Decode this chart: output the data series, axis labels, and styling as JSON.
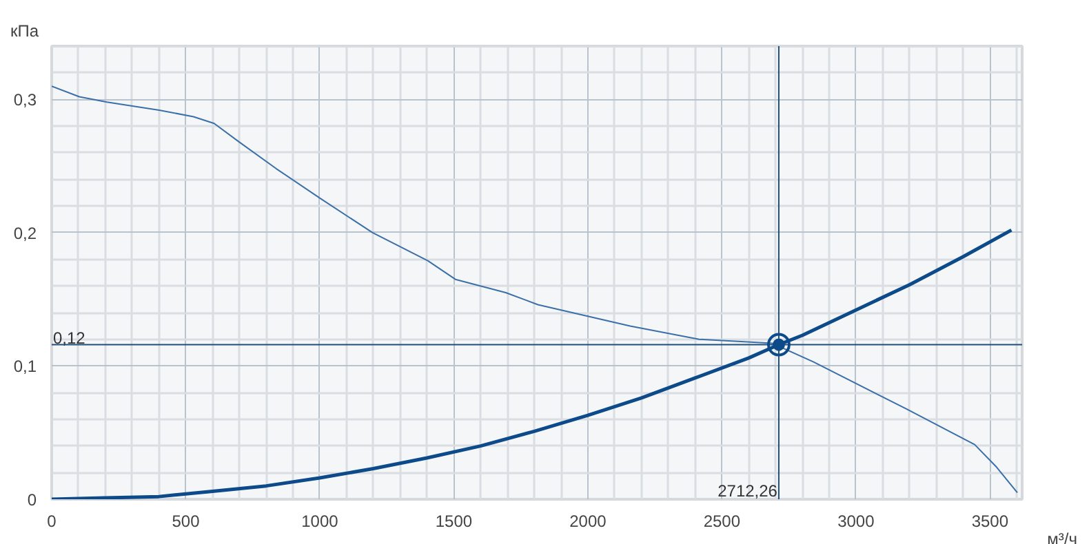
{
  "chart_data": {
    "type": "line",
    "xlabel": "м³/ч",
    "ylabel": "кПа",
    "xlim": [
      0,
      3620
    ],
    "ylim": [
      0,
      0.34
    ],
    "xticks": [
      0,
      500,
      1000,
      1500,
      2000,
      2500,
      3000,
      3500
    ],
    "yticks": [
      0,
      {
        "value": 0.1,
        "label": "0,1"
      },
      {
        "value": 0.2,
        "label": "0,2"
      },
      {
        "value": 0.3,
        "label": "0,3"
      }
    ],
    "grid": true,
    "series": [
      {
        "color": "#3b6fa8",
        "x": [
          0,
          103,
          206,
          401,
          529,
          606,
          700,
          838,
          1000,
          1197,
          1403,
          1506,
          1694,
          1814,
          2158,
          2415,
          2688,
          2842,
          3186,
          3443,
          3525,
          3602
        ],
        "values": [
          0.31,
          0.302,
          0.298,
          0.292,
          0.287,
          0.282,
          0.268,
          0.248,
          0.226,
          0.2,
          0.179,
          0.165,
          0.155,
          0.146,
          0.13,
          0.12,
          0.117,
          0.103,
          0.068,
          0.041,
          0.024,
          0.005
        ]
      },
      {
        "color": "#0d4a8a",
        "x": [
          0,
          200,
          400,
          600,
          800,
          1000,
          1200,
          1400,
          1600,
          1800,
          2000,
          2200,
          2400,
          2600,
          2712.26,
          2800,
          3000,
          3200,
          3400,
          3580
        ],
        "values": [
          0,
          0.001,
          0.002,
          0.006,
          0.01,
          0.016,
          0.023,
          0.031,
          0.04,
          0.051,
          0.063,
          0.076,
          0.091,
          0.106,
          0.116,
          0.123,
          0.142,
          0.161,
          0.182,
          0.202
        ]
      },
      {
        "type": "scatter",
        "color": "#0d4a8a",
        "marker": "circle",
        "x": [
          2712.26
        ],
        "values": [
          0.116
        ]
      }
    ],
    "ref_lines": [
      {
        "axis": "y",
        "value": 0.116,
        "label": "0,12",
        "color": "#1f4e79"
      },
      {
        "axis": "x",
        "value": 2712.26,
        "label": "2712,26",
        "color": "#1f4e79"
      }
    ]
  }
}
